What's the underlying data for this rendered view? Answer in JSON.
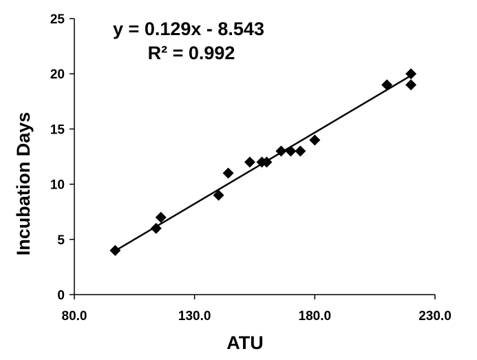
{
  "chart_data": {
    "type": "scatter",
    "title": "",
    "xlabel": "ATU",
    "ylabel": "Incubation Days",
    "xlim": [
      80,
      230
    ],
    "ylim": [
      0,
      25
    ],
    "x_ticks": [
      "80.0",
      "130.0",
      "180.0",
      "230.0"
    ],
    "y_ticks": [
      "0",
      "5",
      "10",
      "15",
      "20",
      "25"
    ],
    "grid": false,
    "legend": "none",
    "annotations": [
      "y = 0.129x - 8.543",
      "R² = 0.992"
    ],
    "trendline": {
      "slope": 0.129,
      "intercept": -8.543,
      "x_range": [
        97,
        220
      ]
    },
    "marker_color": "#000000",
    "points": [
      {
        "x": 97,
        "y": 4
      },
      {
        "x": 114,
        "y": 6
      },
      {
        "x": 116,
        "y": 7
      },
      {
        "x": 140,
        "y": 9
      },
      {
        "x": 144,
        "y": 11
      },
      {
        "x": 153,
        "y": 12
      },
      {
        "x": 158,
        "y": 12
      },
      {
        "x": 160,
        "y": 12
      },
      {
        "x": 166,
        "y": 13
      },
      {
        "x": 170,
        "y": 13
      },
      {
        "x": 174,
        "y": 13
      },
      {
        "x": 180,
        "y": 14
      },
      {
        "x": 210,
        "y": 19
      },
      {
        "x": 220,
        "y": 20
      },
      {
        "x": 220,
        "y": 19
      }
    ]
  }
}
